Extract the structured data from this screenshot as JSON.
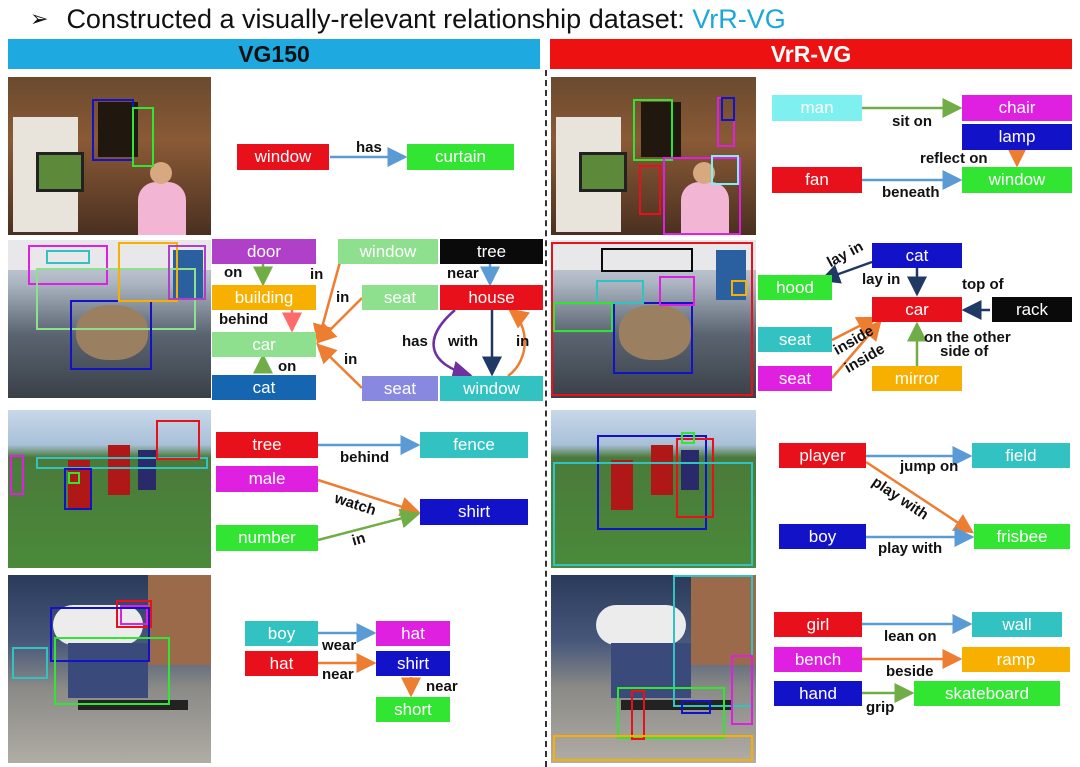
{
  "title": {
    "bullet": "➢",
    "text": "Constructed a visually-relevant relationship dataset: ",
    "accent": "VrR-VG"
  },
  "headers": {
    "left": "VG150",
    "right": "VrR-VG"
  },
  "colors": {
    "red": "#e8101a",
    "green": "#33e533",
    "blue": "#1212c8",
    "cyan": "#33c2c2",
    "lightcyan": "#7ff0f0",
    "magenta": "#e020e0",
    "orange": "#f8b000",
    "purple": "#b040c8",
    "lightgreen": "#8ee08e",
    "black": "#0a0a0a",
    "steel": "#1565b0",
    "lavender": "#8888e0",
    "arrow_blue": "#5b9bd5",
    "arrow_orange": "#ed7d31",
    "arrow_green": "#70ad47",
    "arrow_purple": "#7030a0",
    "arrow_dark": "#203864",
    "arrow_pink": "#ff6a6a"
  },
  "rows": [
    {
      "left": {
        "nodes": [
          {
            "id": "window",
            "label": "window",
            "color": "red"
          },
          {
            "id": "curtain",
            "label": "curtain",
            "color": "green"
          }
        ],
        "relations": [
          {
            "label": "has"
          }
        ]
      },
      "right": {
        "nodes": [
          {
            "id": "man",
            "label": "man",
            "color": "lightcyan"
          },
          {
            "id": "chair",
            "label": "chair",
            "color": "magenta"
          },
          {
            "id": "lamp",
            "label": "lamp",
            "color": "blue"
          },
          {
            "id": "fan",
            "label": "fan",
            "color": "red"
          },
          {
            "id": "window",
            "label": "window",
            "color": "green"
          }
        ],
        "relations": [
          {
            "label": "sit on"
          },
          {
            "label": "reflect on"
          },
          {
            "label": "beneath"
          }
        ]
      }
    },
    {
      "left": {
        "nodes": [
          {
            "id": "door",
            "label": "door",
            "color": "purple"
          },
          {
            "id": "building",
            "label": "building",
            "color": "orange"
          },
          {
            "id": "car",
            "label": "car",
            "color": "lightgreen"
          },
          {
            "id": "cat",
            "label": "cat",
            "color": "steel"
          },
          {
            "id": "window1",
            "label": "window",
            "color": "lightgreen"
          },
          {
            "id": "seat1",
            "label": "seat",
            "color": "lightgreen"
          },
          {
            "id": "seat2",
            "label": "seat",
            "color": "lavender"
          },
          {
            "id": "tree",
            "label": "tree",
            "color": "black"
          },
          {
            "id": "house",
            "label": "house",
            "color": "red"
          },
          {
            "id": "window2",
            "label": "window",
            "color": "cyan"
          }
        ],
        "relations": [
          {
            "label": "on"
          },
          {
            "label": "behind"
          },
          {
            "label": "on"
          },
          {
            "label": "in"
          },
          {
            "label": "in"
          },
          {
            "label": "in"
          },
          {
            "label": "near"
          },
          {
            "label": "has"
          },
          {
            "label": "with"
          },
          {
            "label": "in"
          }
        ]
      },
      "right": {
        "nodes": [
          {
            "id": "cat",
            "label": "cat",
            "color": "blue"
          },
          {
            "id": "hood",
            "label": "hood",
            "color": "green"
          },
          {
            "id": "car",
            "label": "car",
            "color": "red"
          },
          {
            "id": "rack",
            "label": "rack",
            "color": "black"
          },
          {
            "id": "seat1",
            "label": "seat",
            "color": "cyan"
          },
          {
            "id": "seat2",
            "label": "seat",
            "color": "magenta"
          },
          {
            "id": "mirror",
            "label": "mirror",
            "color": "orange"
          }
        ],
        "relations": [
          {
            "label": "lay in"
          },
          {
            "label": "lay in"
          },
          {
            "label": "top of"
          },
          {
            "label": "inside"
          },
          {
            "label": "inside"
          },
          {
            "label": "on the other"
          },
          {
            "label": "side of"
          }
        ]
      }
    },
    {
      "left": {
        "nodes": [
          {
            "id": "tree",
            "label": "tree",
            "color": "red"
          },
          {
            "id": "fence",
            "label": "fence",
            "color": "cyan"
          },
          {
            "id": "male",
            "label": "male",
            "color": "magenta"
          },
          {
            "id": "shirt",
            "label": "shirt",
            "color": "blue"
          },
          {
            "id": "number",
            "label": "number",
            "color": "green"
          }
        ],
        "relations": [
          {
            "label": "behind"
          },
          {
            "label": "watch"
          },
          {
            "label": "in"
          }
        ]
      },
      "right": {
        "nodes": [
          {
            "id": "player",
            "label": "player",
            "color": "red"
          },
          {
            "id": "field",
            "label": "field",
            "color": "cyan"
          },
          {
            "id": "boy",
            "label": "boy",
            "color": "blue"
          },
          {
            "id": "frisbee",
            "label": "frisbee",
            "color": "green"
          }
        ],
        "relations": [
          {
            "label": "jump on"
          },
          {
            "label": "play with"
          },
          {
            "label": "play with"
          }
        ]
      }
    },
    {
      "left": {
        "nodes": [
          {
            "id": "boy",
            "label": "boy",
            "color": "cyan"
          },
          {
            "id": "hat1",
            "label": "hat",
            "color": "magenta"
          },
          {
            "id": "hat2",
            "label": "hat",
            "color": "red"
          },
          {
            "id": "shirt",
            "label": "shirt",
            "color": "blue"
          },
          {
            "id": "short",
            "label": "short",
            "color": "green"
          }
        ],
        "relations": [
          {
            "label": "wear"
          },
          {
            "label": "near"
          },
          {
            "label": "near"
          }
        ]
      },
      "right": {
        "nodes": [
          {
            "id": "girl",
            "label": "girl",
            "color": "red"
          },
          {
            "id": "wall",
            "label": "wall",
            "color": "cyan"
          },
          {
            "id": "bench",
            "label": "bench",
            "color": "magenta"
          },
          {
            "id": "ramp",
            "label": "ramp",
            "color": "orange"
          },
          {
            "id": "hand",
            "label": "hand",
            "color": "blue"
          },
          {
            "id": "skateboard",
            "label": "skateboard",
            "color": "green"
          }
        ],
        "relations": [
          {
            "label": "lean on"
          },
          {
            "label": "beside"
          },
          {
            "label": "grip"
          }
        ]
      }
    }
  ]
}
